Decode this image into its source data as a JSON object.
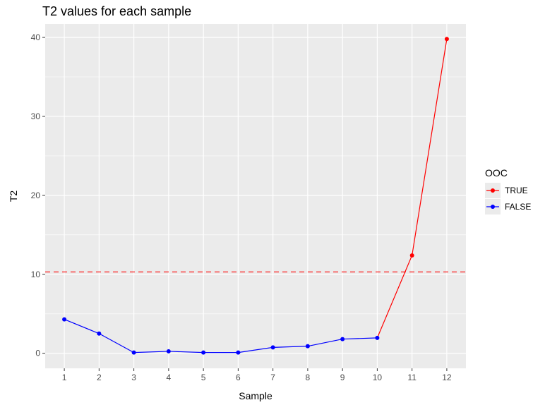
{
  "chart_data": {
    "type": "line",
    "title": "T2 values for each sample",
    "xlabel": "Sample",
    "ylabel": "T2",
    "x": [
      1,
      2,
      3,
      4,
      5,
      6,
      7,
      8,
      9,
      10,
      11,
      12
    ],
    "values": [
      4.3,
      2.5,
      0.1,
      0.25,
      0.1,
      0.1,
      0.75,
      0.9,
      1.8,
      1.95,
      12.4,
      39.8
    ],
    "ooc": [
      false,
      false,
      false,
      false,
      false,
      false,
      false,
      false,
      false,
      false,
      true,
      true
    ],
    "xlim": [
      0.45,
      12.55
    ],
    "ylim": [
      -1.9,
      41.7
    ],
    "xticks": [
      1,
      2,
      3,
      4,
      5,
      6,
      7,
      8,
      9,
      10,
      11,
      12
    ],
    "yticks": [
      0,
      10,
      20,
      30,
      40
    ],
    "ytick_labels": [
      "0",
      "10",
      "20",
      "30",
      "40"
    ],
    "threshold": 10.3,
    "grid": true,
    "legend": {
      "title": "OOC",
      "placement": "right",
      "entries": [
        {
          "label": "TRUE",
          "color": "#ff0000"
        },
        {
          "label": "FALSE",
          "color": "#0000ff"
        }
      ]
    },
    "colors": {
      "true": "#ff0000",
      "false": "#0000ff",
      "threshold": "#ff0000",
      "panel": "#ebebeb",
      "grid": "#ffffff"
    }
  }
}
